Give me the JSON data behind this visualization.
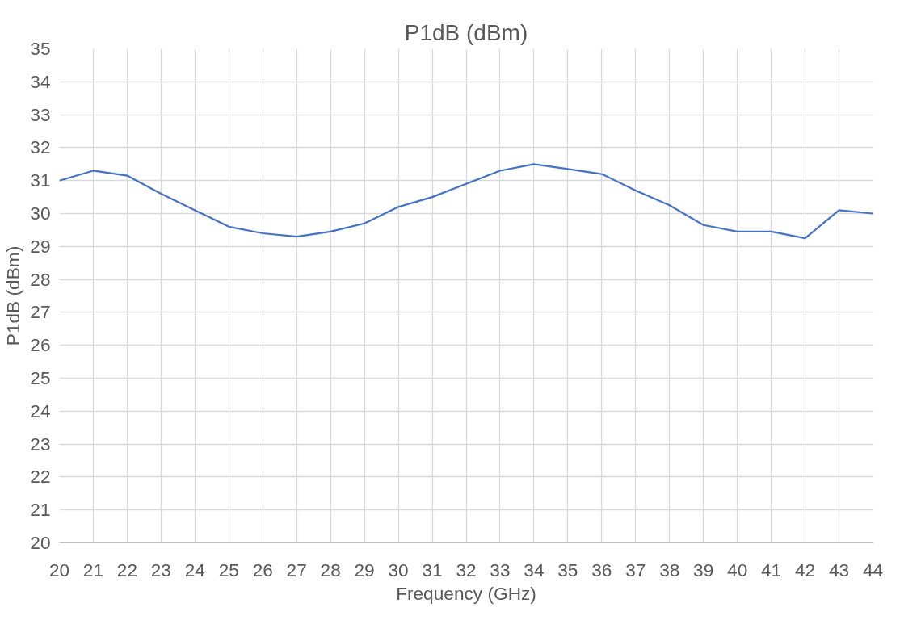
{
  "chart_data": {
    "type": "line",
    "title": "P1dB (dBm)",
    "xlabel": "Frequency (GHz)",
    "ylabel": "P1dB (dBm)",
    "categories": [
      "20",
      "21",
      "22",
      "23",
      "24",
      "25",
      "26",
      "27",
      "28",
      "29",
      "30",
      "31",
      "32",
      "33",
      "34",
      "35",
      "36",
      "37",
      "38",
      "39",
      "40",
      "41",
      "42",
      "43",
      "44"
    ],
    "series": [
      {
        "color": "#4472c4",
        "values": [
          31.0,
          31.3,
          31.15,
          30.6,
          30.1,
          29.6,
          29.4,
          29.3,
          29.45,
          29.7,
          30.2,
          30.5,
          30.9,
          31.3,
          31.5,
          31.35,
          31.2,
          30.7,
          30.25,
          29.65,
          29.45,
          29.45,
          29.25,
          30.1,
          30.0
        ]
      }
    ],
    "ylim": [
      20,
      35
    ],
    "yticks": [
      20,
      21,
      22,
      23,
      24,
      25,
      26,
      27,
      28,
      29,
      30,
      31,
      32,
      33,
      34,
      35
    ],
    "grid": true,
    "marker": "none",
    "line_style": "solid"
  }
}
